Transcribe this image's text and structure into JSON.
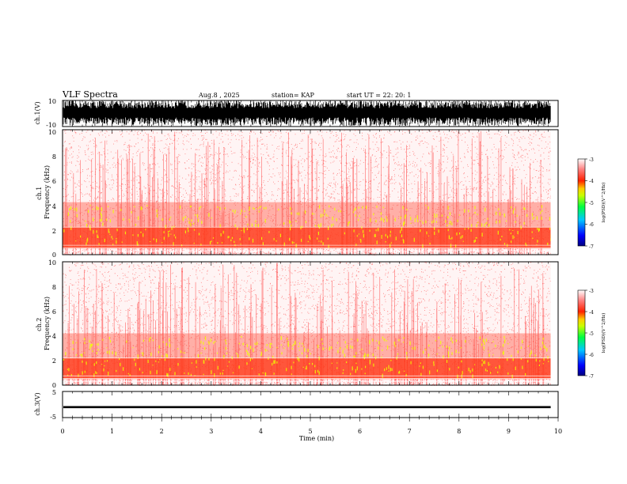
{
  "header": {
    "title": "VLF Spectra",
    "date": "Aug.8  , 2025",
    "station": "station= KAP",
    "start": "start  UT  =   22: 20: 1"
  },
  "colors": {
    "background": "#ffffff",
    "spectrogram_low": "#ffffff",
    "spectrogram_mid": "#ff2020",
    "spectrogram_high": "#f0ff00",
    "waveform": "#000000"
  },
  "chart_data": [
    {
      "type": "line",
      "panel": "ch1-waveform",
      "ylabel": "ch.1(V)",
      "ylim": [
        -10,
        10
      ],
      "y_tick_labels": [
        "10",
        "-10"
      ],
      "x_range": [
        0,
        10
      ],
      "description_values": "dense VLF waveform, amplitude typically spanning about -9 to +10 V"
    },
    {
      "type": "heatmap",
      "panel": "ch1-spectrogram",
      "ylabel": "ch.1\nFrequency  (kHz)",
      "ylim": [
        0,
        10
      ],
      "y_tick_labels": [
        "0",
        "2",
        "4",
        "6",
        "8",
        "10"
      ],
      "x_range": [
        0,
        10
      ],
      "band_kHz": [
        0.5,
        2.2
      ],
      "colorbar": {
        "label": "log(PSD)(V^2/Hz)",
        "range": [
          -7,
          -3
        ],
        "tick_labels": [
          "-3",
          "-4",
          "-5",
          "-6",
          "-7"
        ]
      }
    },
    {
      "type": "heatmap",
      "panel": "ch2-spectrogram",
      "ylabel": "ch.2\nFrequency  (kHz)",
      "ylim": [
        0,
        10
      ],
      "y_tick_labels": [
        "0",
        "2",
        "4",
        "6",
        "8",
        "10"
      ],
      "x_range": [
        0,
        10
      ],
      "band_kHz": [
        0.5,
        2.2
      ],
      "colorbar": {
        "label": "log(PSD)(V^2/Hz)",
        "range": [
          -7,
          -3
        ],
        "tick_labels": [
          "-3",
          "-4",
          "-5",
          "-6",
          "-7"
        ]
      }
    },
    {
      "type": "line",
      "panel": "ch3-waveform",
      "ylabel": "ch.3(V)",
      "ylim": [
        -5,
        5
      ],
      "y_tick_labels": [
        "5",
        "-5"
      ],
      "x_range": [
        0,
        10
      ],
      "description_values": "near-constant signal around -1 V"
    }
  ],
  "x_axis": {
    "label": "Time  (min)",
    "tick_labels": [
      "0",
      "1",
      "2",
      "3",
      "4",
      "5",
      "6",
      "7",
      "8",
      "9",
      "10"
    ],
    "range": [
      0,
      10
    ]
  }
}
